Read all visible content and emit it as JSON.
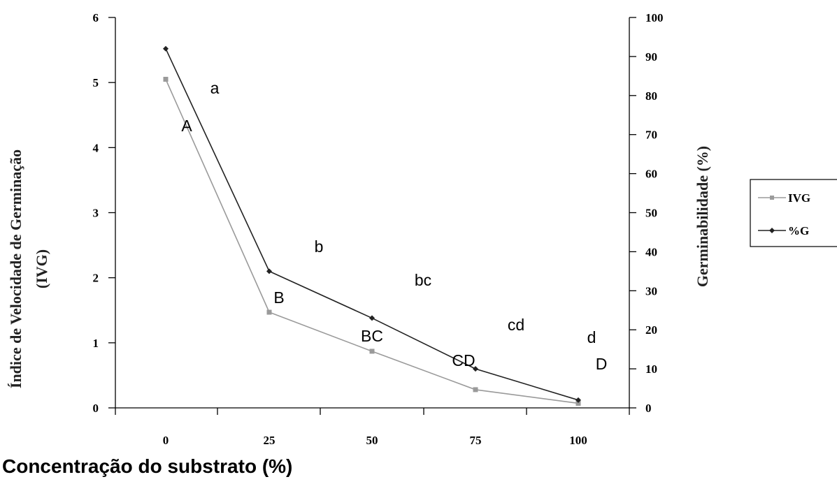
{
  "chart_data": {
    "type": "line",
    "x": [
      0,
      25,
      50,
      75,
      100
    ],
    "x_tick_labels": [
      "0",
      "25",
      "50",
      "75",
      "100"
    ],
    "xlabel": "Concentração do substrato (%)",
    "ylabel_left_line1": "Índice de Velocidade de Germinação",
    "ylabel_left_line2": "(IVG)",
    "ylabel_right": "Germinabilidade (%)",
    "y_left_ticks": [
      "0",
      "1",
      "2",
      "3",
      "4",
      "5",
      "6"
    ],
    "y_right_ticks": [
      "0",
      "10",
      "20",
      "30",
      "40",
      "50",
      "60",
      "70",
      "80",
      "90",
      "100"
    ],
    "ylim_left": [
      0,
      6
    ],
    "ylim_right": [
      0,
      100
    ],
    "series": [
      {
        "name": "IVG",
        "axis": "left",
        "values": [
          5.05,
          1.47,
          0.87,
          0.28,
          0.07
        ],
        "color": "#9a9a9a",
        "marker": "square"
      },
      {
        "name": "%G",
        "axis": "right",
        "values": [
          92,
          35,
          23,
          10,
          2
        ],
        "color": "#222222",
        "marker": "diamond"
      }
    ],
    "annotations": {
      "ivg_letters": [
        "A",
        "B",
        "BC",
        "CD",
        "D"
      ],
      "g_letters": [
        "a",
        "b",
        "bc",
        "cd",
        "d"
      ]
    },
    "legend_placement": "right",
    "grid": false
  }
}
